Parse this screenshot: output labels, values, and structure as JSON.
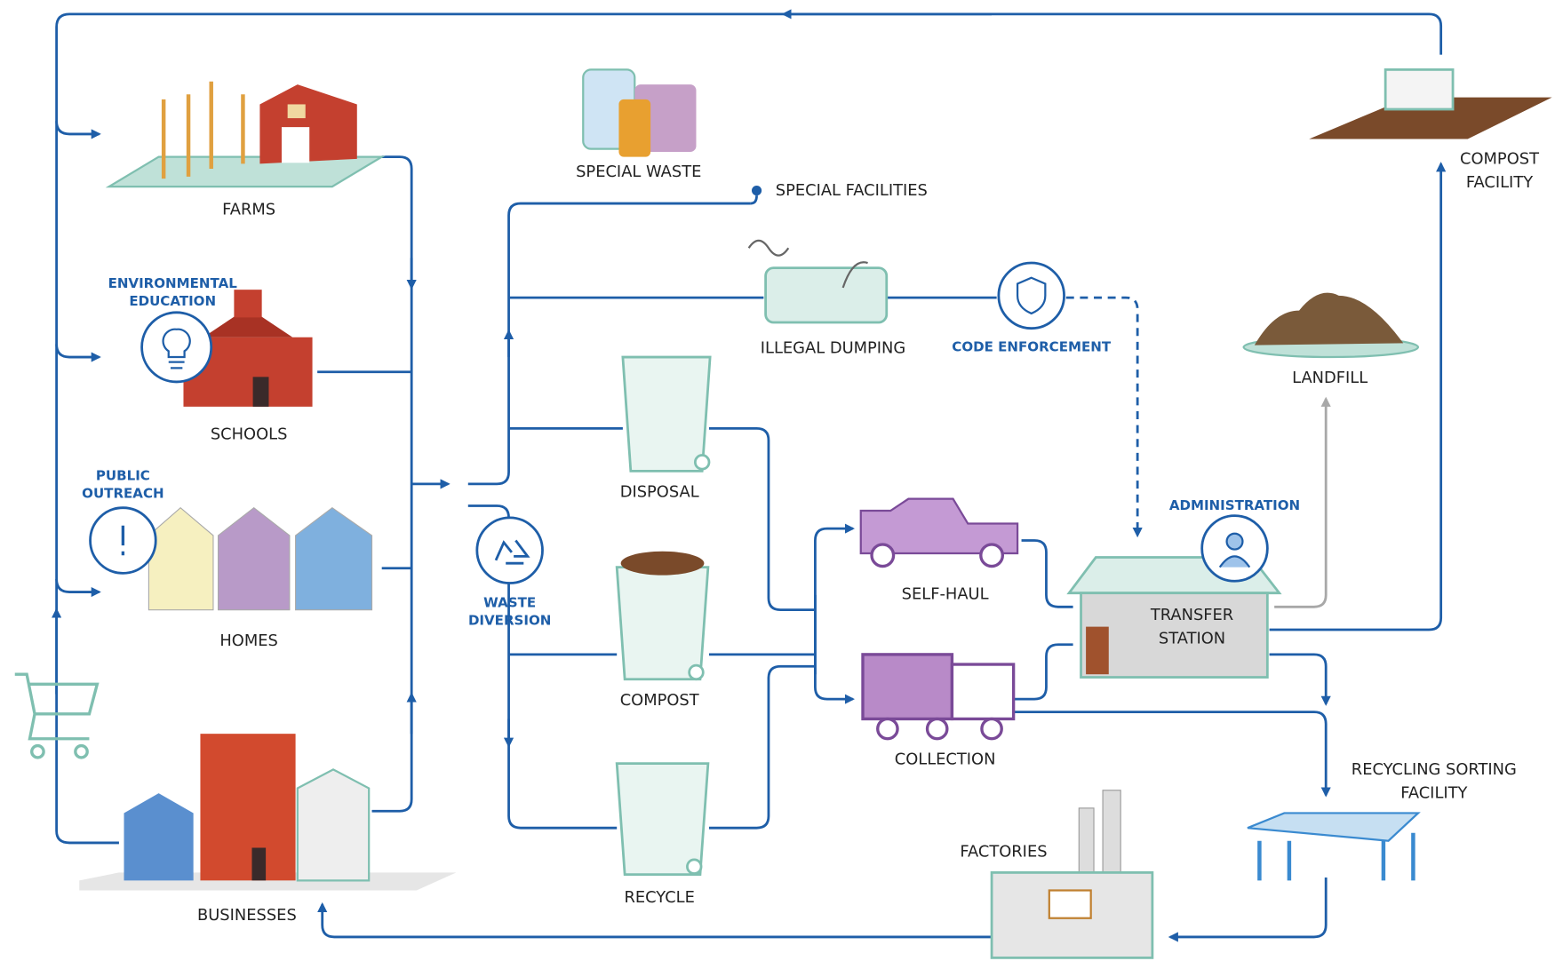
{
  "nodes": [
    {
      "label": [
        "FARMS"
      ]
    },
    {
      "label": [
        "ENVIRONMENTAL",
        "EDUCATION"
      ]
    },
    {
      "label": [
        "SCHOOLS"
      ]
    },
    {
      "label": [
        "PUBLIC",
        "OUTREACH"
      ]
    },
    {
      "label": [
        "HOMES"
      ]
    },
    {
      "label": [
        "BUSINESSES"
      ]
    },
    {
      "label": [
        "SPECIAL WASTE"
      ]
    },
    {
      "label": [
        "SPECIAL FACILITIES"
      ]
    },
    {
      "label": [
        "ILLEGAL DUMPING"
      ]
    },
    {
      "label": [
        "CODE ENFORCEMENT"
      ]
    },
    {
      "label": [
        "DISPOSAL"
      ]
    },
    {
      "label": [
        "COMPOST"
      ]
    },
    {
      "label": [
        "RECYCLE"
      ]
    },
    {
      "label": [
        "WASTE",
        "DIVERSION"
      ]
    },
    {
      "label": [
        "SELF-HAUL"
      ]
    },
    {
      "label": [
        "COLLECTION"
      ]
    },
    {
      "label": [
        "ADMINISTRATION"
      ]
    },
    {
      "label": [
        "TRANSFER",
        "STATION"
      ]
    },
    {
      "label": [
        "LANDFILL"
      ]
    },
    {
      "label": [
        "COMPOST",
        "FACILITY"
      ]
    },
    {
      "label": [
        "RECYCLING SORTING",
        "FACILITY"
      ]
    },
    {
      "label": [
        "FACTORIES"
      ]
    }
  ]
}
